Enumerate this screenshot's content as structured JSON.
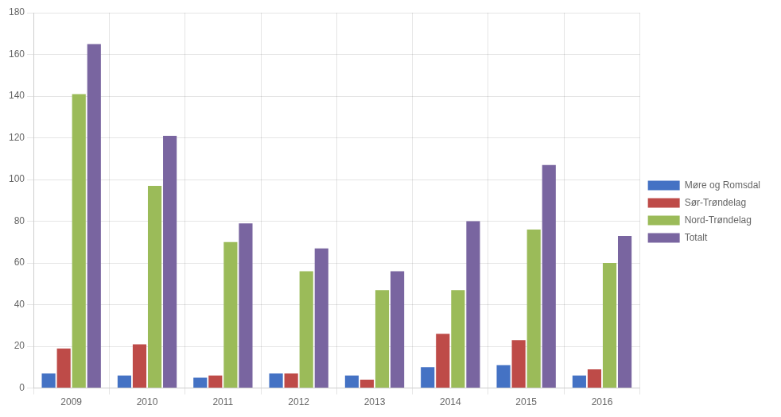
{
  "chart_data": {
    "type": "bar",
    "categories": [
      "2009",
      "2010",
      "2011",
      "2012",
      "2013",
      "2014",
      "2015",
      "2016"
    ],
    "series": [
      {
        "name": "Møre og Romsdal",
        "color": "#4472C4",
        "values": [
          7,
          6,
          5,
          7,
          6,
          10,
          11,
          6
        ]
      },
      {
        "name": "Sør-Trøndelag",
        "color": "#BE4B48",
        "values": [
          19,
          21,
          6,
          7,
          4,
          26,
          23,
          9
        ]
      },
      {
        "name": "Nord-Trøndelag",
        "color": "#9BBB59",
        "values": [
          141,
          97,
          70,
          56,
          47,
          47,
          76,
          60
        ]
      },
      {
        "name": "Totalt",
        "color": "#7965A0",
        "values": [
          165,
          121,
          79,
          67,
          56,
          80,
          107,
          73
        ]
      }
    ],
    "ylim": [
      0,
      180
    ],
    "yticks": [
      0,
      20,
      40,
      60,
      80,
      100,
      120,
      140,
      160,
      180
    ],
    "grid": true,
    "legend": "right"
  }
}
